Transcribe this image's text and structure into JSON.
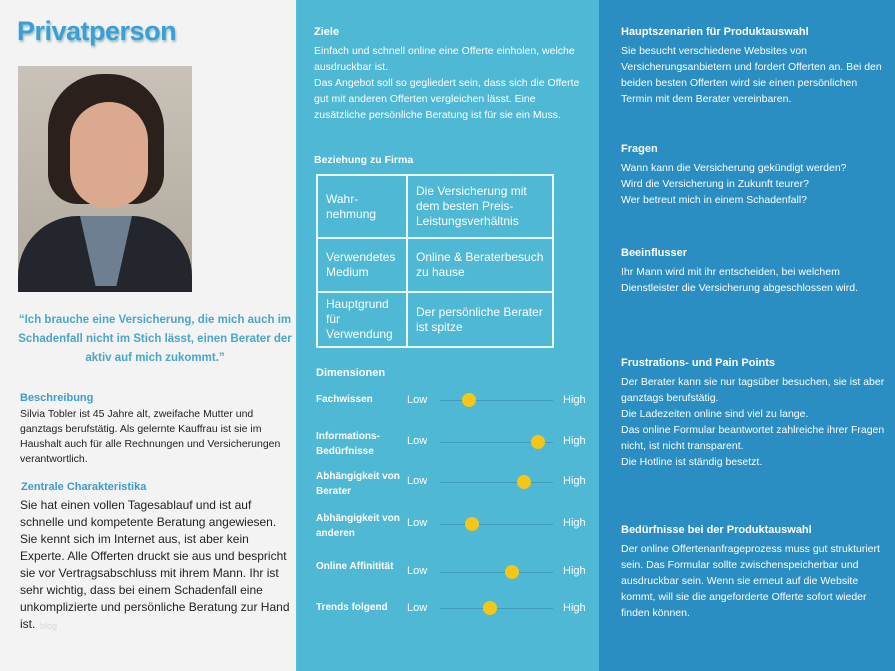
{
  "title": "Privatperson",
  "colors": {
    "left_bg": "#f3f3f3",
    "middle_bg": "#4fb8d4",
    "right_bg": "#2a8ec3",
    "accent": "#3a9fd6",
    "slider_dot": "#f5c518"
  },
  "quote": "“Ich brauche eine Versicherung, die mich auch im Schadenfall nicht im Stich lässt, einen Berater der aktiv auf mich zukommt.”",
  "beschreibung": {
    "heading": "Beschreibung",
    "text": "Silvia Tobler ist 45 Jahre alt, zweifache Mutter und ganztags berufstätig. Als gelernte Kauffrau ist sie im Haushalt auch für alle Rechnungen und Versicherungen verantwortlich."
  },
  "charakteristika": {
    "heading": "Zentrale Charakteristika",
    "text": "Sie hat einen vollen Tagesablauf und ist auf schnelle und kompetente Beratung angewiesen. Sie kennt sich im Internet aus, ist aber kein Experte. Alle Offerten druckt sie aus und bespricht sie vor Vertragsabschluss mit ihrem Mann. Ihr ist sehr wichtig, dass bei einem Schadenfall eine unkomplizierte und persönliche Beratung zur Hand ist."
  },
  "watermark": "blog",
  "ziele": {
    "heading": "Ziele",
    "lines": [
      "Einfach und schnell online eine Offerte einholen, welche ausdruckbar ist.",
      "Das Angebot soll so gegliedert sein, dass sich die Offerte gut mit anderen Offerten vergleichen lässt. Eine zusätzliche persönliche Beratung ist für sie ein Muss."
    ]
  },
  "beziehung": {
    "heading": "Beziehung zu Firma",
    "rows": [
      [
        "Wahr-nehmung",
        "Die Versicherung mit dem besten Preis-Leistungsverhältnis"
      ],
      [
        "Verwendetes Medium",
        "Online & Beraterbesuch zu hause"
      ],
      [
        "Hauptgrund für Verwendung",
        "Der persönliche Berater ist spitze"
      ]
    ]
  },
  "dimensionen": {
    "heading": "Dimensionen",
    "low": "Low",
    "high": "High",
    "items": [
      {
        "label": "Fachwissen",
        "value": 0.26
      },
      {
        "label": "Informations-Bedürfnisse",
        "value": 0.87
      },
      {
        "label": "Abhängigkeit von Berater",
        "value": 0.74
      },
      {
        "label": "Abhängigkeit von anderen",
        "value": 0.28
      },
      {
        "label": "Online Affinitität",
        "value": 0.64
      },
      {
        "label": "Trends folgend",
        "value": 0.44
      }
    ]
  },
  "szenarien": {
    "heading": "Hauptszenarien für Produktauswahl",
    "text": "Sie besucht verschiedene Websites von Versicherungsanbietern und fordert Offerten an. Bei den beiden besten Offerten wird sie einen persönlichen Termin mit dem Berater vereinbaren."
  },
  "fragen": {
    "heading": "Fragen",
    "lines": [
      "Wann kann die Versicherung gekündigt werden?",
      "Wird die Versicherung in Zukunft teurer?",
      "Wer betreut mich in einem Schadenfall?"
    ]
  },
  "beeinflusser": {
    "heading": "Beeinflusser",
    "text": "Ihr Mann wird mit ihr entscheiden, bei welchem Dienstleister die Versicherung abgeschlossen wird."
  },
  "frustrationen": {
    "heading": "Frustrations- und Pain Points",
    "lines": [
      "Der Berater kann sie nur tagsüber besuchen, sie ist aber ganztags berufstätig.",
      "Die Ladezeiten online sind viel zu lange.",
      "Das online Formular beantwortet zahlreiche ihrer Fragen nicht, ist nicht transparent.",
      "Die Hotline ist ständig besetzt."
    ]
  },
  "beduerfnisse": {
    "heading": "Bedürfnisse bei der Produktauswahl",
    "text": "Der online Offertenanfrageprozess muss gut strukturiert sein. Das Formular sollte zwischenspeicherbar und ausdruckbar sein. Wenn sie erneut auf die Website kommt, will sie die angeforderte Offerte sofort wieder finden können."
  }
}
